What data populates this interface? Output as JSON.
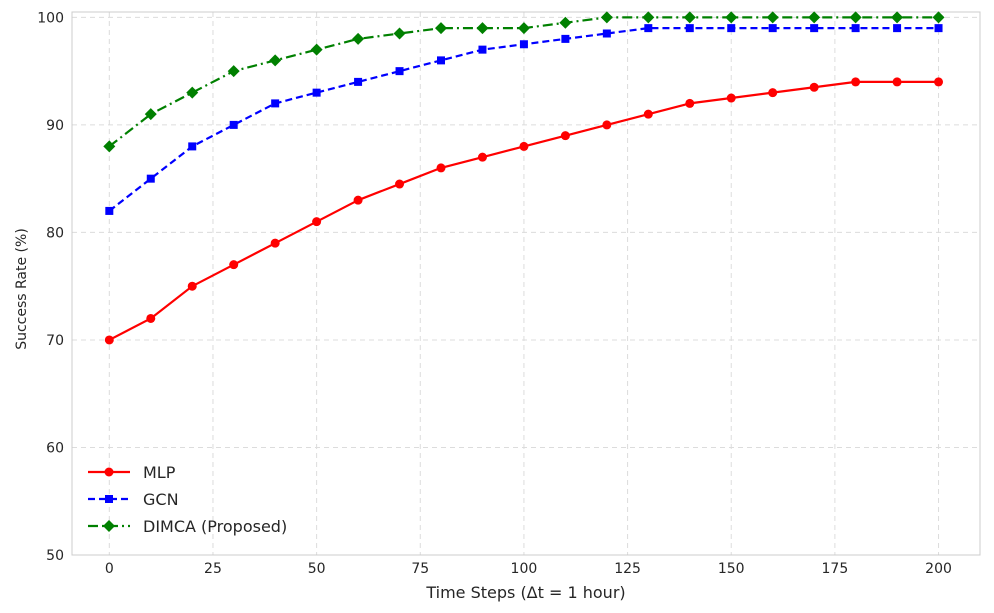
{
  "chart_data": {
    "type": "line",
    "title": "",
    "xlabel": "Time Steps (Δt = 1 hour)",
    "ylabel": "Success Rate (%)",
    "xlim": [
      -9,
      210
    ],
    "ylim": [
      50,
      100.5
    ],
    "xticks": [
      0,
      25,
      50,
      75,
      100,
      125,
      150,
      175,
      200
    ],
    "yticks": [
      50,
      60,
      70,
      80,
      90,
      100
    ],
    "grid": true,
    "grid_style": "dashed",
    "legend_position": "lower-left",
    "x": [
      0,
      10,
      20,
      30,
      40,
      50,
      60,
      70,
      80,
      90,
      100,
      110,
      120,
      130,
      140,
      150,
      160,
      170,
      180,
      190,
      200
    ],
    "series": [
      {
        "name": "MLP",
        "color": "#ff0000",
        "line_style": "solid",
        "marker": "circle",
        "values": [
          70,
          72,
          75,
          77,
          79,
          81,
          83,
          84.5,
          86,
          87,
          88,
          89,
          90,
          91,
          92,
          92.5,
          93,
          93.5,
          94,
          94,
          94
        ]
      },
      {
        "name": "GCN",
        "color": "#0000ff",
        "line_style": "dashed",
        "marker": "square",
        "values": [
          82,
          85,
          88,
          90,
          92,
          93,
          94,
          95,
          96,
          97,
          97.5,
          98,
          98.5,
          99,
          99,
          99,
          99,
          99,
          99,
          99,
          99
        ]
      },
      {
        "name": "DIMCA (Proposed)",
        "color": "#008000",
        "line_style": "dashdot",
        "marker": "diamond",
        "values": [
          88,
          91,
          93,
          95,
          96,
          97,
          98,
          98.5,
          99,
          99,
          99,
          99.5,
          100,
          100,
          100,
          100,
          100,
          100,
          100,
          100,
          100
        ]
      }
    ]
  }
}
